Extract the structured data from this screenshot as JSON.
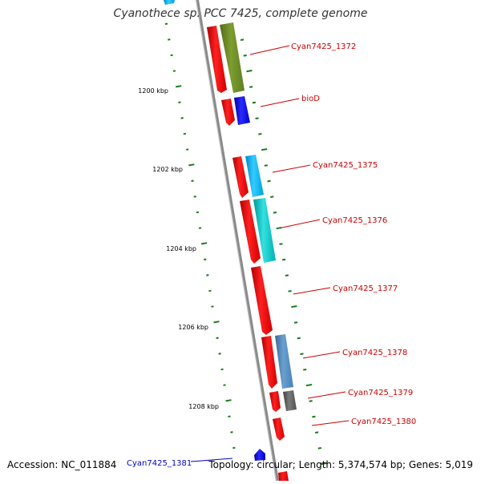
{
  "title": "Cyanothece sp. PCC 7425, complete genome",
  "footer": {
    "accession": "Accession: NC_011884",
    "topology": "Topology: circular; Length: 5,374,574 bp; Genes: 5,019"
  },
  "scale": {
    "tick_labels": [
      "1200 kbp",
      "1202 kbp",
      "1204 kbp",
      "1206 kbp",
      "1208 kbp"
    ]
  },
  "genes": [
    {
      "label": "Cyan7425_1372",
      "color": "#cc0000"
    },
    {
      "label": "bioD",
      "color": "#cc0000"
    },
    {
      "label": "Cyan7425_1375",
      "color": "#cc0000"
    },
    {
      "label": "Cyan7425_1376",
      "color": "#cc0000"
    },
    {
      "label": "Cyan7425_1377",
      "color": "#cc0000"
    },
    {
      "label": "Cyan7425_1378",
      "color": "#cc0000"
    },
    {
      "label": "Cyan7425_1379",
      "color": "#cc0000"
    },
    {
      "label": "Cyan7425_1380",
      "color": "#cc0000"
    },
    {
      "label": "Cyan7425_1381",
      "color": "#0000cc"
    }
  ],
  "colors": {
    "backbone": "#8a8a8a",
    "tick": "#1a7a1a",
    "cds": "#ff0000",
    "olive": "#6b8e23",
    "blue": "#0000ff",
    "sky": "#00aaee",
    "cyan": "#00bfbf",
    "steel": "#4682b4",
    "gray": "#555555"
  }
}
